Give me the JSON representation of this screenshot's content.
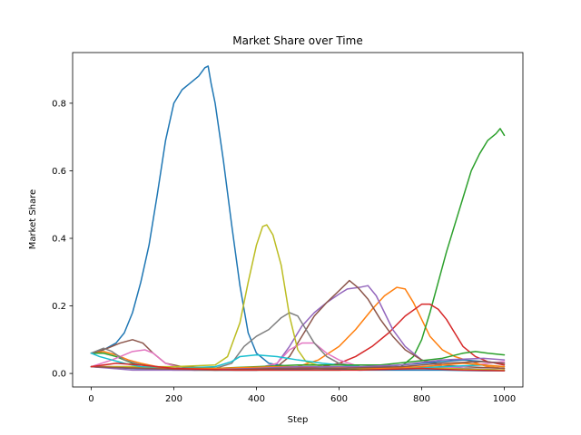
{
  "chart_data": {
    "type": "line",
    "title": "Market Share over Time",
    "xlabel": "Step",
    "ylabel": "Market Share",
    "xlim": [
      -45,
      1045
    ],
    "ylim": [
      -0.04,
      0.95
    ],
    "xticks": [
      0,
      200,
      400,
      600,
      800,
      1000
    ],
    "yticks": [
      0.0,
      0.2,
      0.4,
      0.6,
      0.8
    ],
    "xtick_labels": [
      "0",
      "200",
      "400",
      "600",
      "800",
      "1000"
    ],
    "ytick_labels": [
      "0.0",
      "0.2",
      "0.4",
      "0.6",
      "0.8"
    ],
    "grid": false,
    "legend": "none",
    "series": [
      {
        "color": "#1f77b4",
        "points": [
          [
            0,
            0.06
          ],
          [
            30,
            0.07
          ],
          [
            60,
            0.09
          ],
          [
            80,
            0.12
          ],
          [
            100,
            0.18
          ],
          [
            120,
            0.27
          ],
          [
            140,
            0.38
          ],
          [
            160,
            0.53
          ],
          [
            180,
            0.69
          ],
          [
            200,
            0.8
          ],
          [
            220,
            0.84
          ],
          [
            240,
            0.86
          ],
          [
            260,
            0.88
          ],
          [
            275,
            0.905
          ],
          [
            283,
            0.91
          ],
          [
            290,
            0.86
          ],
          [
            300,
            0.8
          ],
          [
            320,
            0.63
          ],
          [
            340,
            0.44
          ],
          [
            360,
            0.26
          ],
          [
            380,
            0.12
          ],
          [
            400,
            0.06
          ],
          [
            430,
            0.03
          ],
          [
            480,
            0.02
          ],
          [
            550,
            0.015
          ],
          [
            650,
            0.01
          ],
          [
            750,
            0.01
          ],
          [
            850,
            0.01
          ],
          [
            950,
            0.008
          ],
          [
            1000,
            0.008
          ]
        ]
      },
      {
        "color": "#ff7f0e",
        "points": [
          [
            0,
            0.06
          ],
          [
            30,
            0.065
          ],
          [
            60,
            0.055
          ],
          [
            90,
            0.04
          ],
          [
            120,
            0.03
          ],
          [
            160,
            0.02
          ],
          [
            200,
            0.015
          ],
          [
            250,
            0.01
          ],
          [
            300,
            0.01
          ],
          [
            350,
            0.01
          ],
          [
            400,
            0.01
          ],
          [
            450,
            0.015
          ],
          [
            500,
            0.02
          ],
          [
            550,
            0.04
          ],
          [
            600,
            0.08
          ],
          [
            640,
            0.13
          ],
          [
            680,
            0.19
          ],
          [
            710,
            0.23
          ],
          [
            740,
            0.255
          ],
          [
            760,
            0.25
          ],
          [
            780,
            0.21
          ],
          [
            800,
            0.16
          ],
          [
            820,
            0.11
          ],
          [
            850,
            0.07
          ],
          [
            880,
            0.05
          ],
          [
            920,
            0.035
          ],
          [
            960,
            0.02
          ],
          [
            1000,
            0.015
          ]
        ]
      },
      {
        "color": "#2ca02c",
        "points": [
          [
            0,
            0.06
          ],
          [
            30,
            0.06
          ],
          [
            60,
            0.05
          ],
          [
            100,
            0.03
          ],
          [
            150,
            0.02
          ],
          [
            200,
            0.015
          ],
          [
            300,
            0.01
          ],
          [
            400,
            0.01
          ],
          [
            500,
            0.01
          ],
          [
            600,
            0.01
          ],
          [
            700,
            0.015
          ],
          [
            750,
            0.02
          ],
          [
            780,
            0.05
          ],
          [
            800,
            0.1
          ],
          [
            820,
            0.18
          ],
          [
            840,
            0.27
          ],
          [
            860,
            0.36
          ],
          [
            880,
            0.44
          ],
          [
            900,
            0.52
          ],
          [
            920,
            0.6
          ],
          [
            940,
            0.65
          ],
          [
            960,
            0.69
          ],
          [
            980,
            0.71
          ],
          [
            990,
            0.725
          ],
          [
            1000,
            0.705
          ]
        ]
      },
      {
        "color": "#d62728",
        "points": [
          [
            0,
            0.02
          ],
          [
            100,
            0.02
          ],
          [
            200,
            0.015
          ],
          [
            300,
            0.015
          ],
          [
            400,
            0.015
          ],
          [
            500,
            0.015
          ],
          [
            560,
            0.02
          ],
          [
            600,
            0.03
          ],
          [
            640,
            0.05
          ],
          [
            680,
            0.08
          ],
          [
            720,
            0.12
          ],
          [
            760,
            0.17
          ],
          [
            800,
            0.205
          ],
          [
            820,
            0.205
          ],
          [
            840,
            0.19
          ],
          [
            860,
            0.16
          ],
          [
            880,
            0.12
          ],
          [
            900,
            0.08
          ],
          [
            930,
            0.05
          ],
          [
            960,
            0.035
          ],
          [
            1000,
            0.025
          ]
        ]
      },
      {
        "color": "#9467bd",
        "points": [
          [
            0,
            0.02
          ],
          [
            100,
            0.015
          ],
          [
            200,
            0.01
          ],
          [
            300,
            0.01
          ],
          [
            400,
            0.01
          ],
          [
            450,
            0.03
          ],
          [
            480,
            0.08
          ],
          [
            510,
            0.14
          ],
          [
            540,
            0.18
          ],
          [
            570,
            0.21
          ],
          [
            600,
            0.235
          ],
          [
            620,
            0.25
          ],
          [
            650,
            0.255
          ],
          [
            670,
            0.26
          ],
          [
            690,
            0.23
          ],
          [
            710,
            0.18
          ],
          [
            730,
            0.13
          ],
          [
            760,
            0.08
          ],
          [
            800,
            0.04
          ],
          [
            850,
            0.02
          ],
          [
            900,
            0.015
          ],
          [
            1000,
            0.01
          ]
        ]
      },
      {
        "color": "#8c564b",
        "points": [
          [
            0,
            0.06
          ],
          [
            40,
            0.075
          ],
          [
            70,
            0.09
          ],
          [
            100,
            0.1
          ],
          [
            125,
            0.09
          ],
          [
            150,
            0.06
          ],
          [
            180,
            0.03
          ],
          [
            220,
            0.02
          ],
          [
            300,
            0.015
          ],
          [
            400,
            0.015
          ],
          [
            450,
            0.02
          ],
          [
            480,
            0.05
          ],
          [
            510,
            0.11
          ],
          [
            540,
            0.17
          ],
          [
            570,
            0.21
          ],
          [
            600,
            0.245
          ],
          [
            625,
            0.275
          ],
          [
            645,
            0.255
          ],
          [
            670,
            0.22
          ],
          [
            700,
            0.16
          ],
          [
            730,
            0.11
          ],
          [
            760,
            0.07
          ],
          [
            800,
            0.04
          ],
          [
            850,
            0.025
          ],
          [
            900,
            0.02
          ],
          [
            1000,
            0.015
          ]
        ]
      },
      {
        "color": "#e377c2",
        "points": [
          [
            0,
            0.02
          ],
          [
            50,
            0.04
          ],
          [
            100,
            0.065
          ],
          [
            130,
            0.07
          ],
          [
            150,
            0.06
          ],
          [
            180,
            0.03
          ],
          [
            220,
            0.015
          ],
          [
            300,
            0.01
          ],
          [
            400,
            0.015
          ],
          [
            450,
            0.03
          ],
          [
            480,
            0.07
          ],
          [
            510,
            0.09
          ],
          [
            540,
            0.09
          ],
          [
            570,
            0.06
          ],
          [
            600,
            0.04
          ],
          [
            650,
            0.02
          ],
          [
            700,
            0.015
          ],
          [
            800,
            0.015
          ],
          [
            900,
            0.02
          ],
          [
            960,
            0.03
          ],
          [
            1000,
            0.035
          ]
        ]
      },
      {
        "color": "#7f7f7f",
        "points": [
          [
            0,
            0.06
          ],
          [
            30,
            0.075
          ],
          [
            50,
            0.065
          ],
          [
            80,
            0.04
          ],
          [
            120,
            0.025
          ],
          [
            200,
            0.015
          ],
          [
            300,
            0.015
          ],
          [
            340,
            0.03
          ],
          [
            370,
            0.08
          ],
          [
            400,
            0.11
          ],
          [
            430,
            0.13
          ],
          [
            460,
            0.165
          ],
          [
            480,
            0.18
          ],
          [
            500,
            0.17
          ],
          [
            520,
            0.13
          ],
          [
            540,
            0.09
          ],
          [
            570,
            0.05
          ],
          [
            600,
            0.03
          ],
          [
            650,
            0.02
          ],
          [
            750,
            0.015
          ],
          [
            850,
            0.015
          ],
          [
            1000,
            0.01
          ]
        ]
      },
      {
        "color": "#bcbd22",
        "points": [
          [
            0,
            0.02
          ],
          [
            100,
            0.02
          ],
          [
            200,
            0.02
          ],
          [
            300,
            0.025
          ],
          [
            330,
            0.05
          ],
          [
            360,
            0.15
          ],
          [
            380,
            0.27
          ],
          [
            400,
            0.38
          ],
          [
            415,
            0.435
          ],
          [
            425,
            0.44
          ],
          [
            440,
            0.41
          ],
          [
            460,
            0.32
          ],
          [
            480,
            0.17
          ],
          [
            500,
            0.07
          ],
          [
            520,
            0.035
          ],
          [
            560,
            0.02
          ],
          [
            650,
            0.015
          ],
          [
            750,
            0.015
          ],
          [
            850,
            0.015
          ],
          [
            1000,
            0.01
          ]
        ]
      },
      {
        "color": "#17becf",
        "points": [
          [
            0,
            0.06
          ],
          [
            20,
            0.05
          ],
          [
            50,
            0.04
          ],
          [
            80,
            0.03
          ],
          [
            120,
            0.02
          ],
          [
            200,
            0.015
          ],
          [
            300,
            0.02
          ],
          [
            340,
            0.035
          ],
          [
            360,
            0.05
          ],
          [
            400,
            0.055
          ],
          [
            450,
            0.05
          ],
          [
            500,
            0.04
          ],
          [
            560,
            0.03
          ],
          [
            650,
            0.02
          ],
          [
            750,
            0.015
          ],
          [
            850,
            0.02
          ],
          [
            950,
            0.025
          ],
          [
            1000,
            0.02
          ]
        ]
      },
      {
        "color": "#1f77b4",
        "points": [
          [
            0,
            0.02
          ],
          [
            100,
            0.015
          ],
          [
            250,
            0.01
          ],
          [
            400,
            0.01
          ],
          [
            550,
            0.015
          ],
          [
            700,
            0.02
          ],
          [
            800,
            0.03
          ],
          [
            900,
            0.04
          ],
          [
            950,
            0.035
          ],
          [
            1000,
            0.03
          ]
        ]
      },
      {
        "color": "#2ca02c",
        "points": [
          [
            0,
            0.02
          ],
          [
            150,
            0.015
          ],
          [
            300,
            0.015
          ],
          [
            400,
            0.02
          ],
          [
            500,
            0.025
          ],
          [
            600,
            0.025
          ],
          [
            700,
            0.025
          ],
          [
            780,
            0.035
          ],
          [
            850,
            0.045
          ],
          [
            900,
            0.06
          ],
          [
            930,
            0.065
          ],
          [
            960,
            0.06
          ],
          [
            1000,
            0.055
          ]
        ]
      },
      {
        "color": "#ff7f0e",
        "points": [
          [
            0,
            0.02
          ],
          [
            150,
            0.015
          ],
          [
            300,
            0.015
          ],
          [
            450,
            0.02
          ],
          [
            550,
            0.02
          ],
          [
            700,
            0.015
          ],
          [
            800,
            0.02
          ],
          [
            900,
            0.03
          ],
          [
            1000,
            0.02
          ]
        ]
      },
      {
        "color": "#9467bd",
        "points": [
          [
            0,
            0.02
          ],
          [
            100,
            0.01
          ],
          [
            250,
            0.01
          ],
          [
            400,
            0.015
          ],
          [
            500,
            0.02
          ],
          [
            650,
            0.02
          ],
          [
            750,
            0.025
          ],
          [
            850,
            0.04
          ],
          [
            950,
            0.045
          ],
          [
            1000,
            0.04
          ]
        ]
      },
      {
        "color": "#8c564b",
        "points": [
          [
            0,
            0.02
          ],
          [
            120,
            0.015
          ],
          [
            300,
            0.01
          ],
          [
            450,
            0.015
          ],
          [
            600,
            0.015
          ],
          [
            750,
            0.02
          ],
          [
            850,
            0.03
          ],
          [
            950,
            0.035
          ],
          [
            1000,
            0.03
          ]
        ]
      },
      {
        "color": "#d62728",
        "points": [
          [
            0,
            0.02
          ],
          [
            60,
            0.03
          ],
          [
            120,
            0.025
          ],
          [
            200,
            0.015
          ],
          [
            350,
            0.01
          ],
          [
            500,
            0.01
          ],
          [
            650,
            0.01
          ],
          [
            800,
            0.015
          ],
          [
            900,
            0.01
          ],
          [
            1000,
            0.008
          ]
        ]
      }
    ]
  }
}
